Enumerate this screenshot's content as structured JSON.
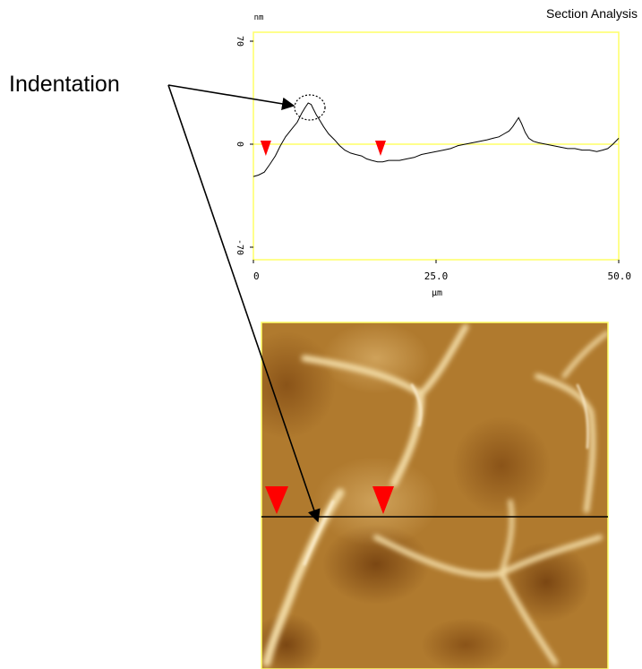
{
  "chart_data": {
    "type": "line",
    "title": "Section Analysis",
    "ylabel": "nm",
    "xlabel": "µm",
    "xlim": [
      0,
      50
    ],
    "ylim": [
      -70,
      70
    ],
    "x_ticks": [
      {
        "value": 0,
        "label": "0"
      },
      {
        "value": 25,
        "label": "25.0"
      },
      {
        "value": 50,
        "label": "50.0"
      }
    ],
    "y_ticks": [
      {
        "value": 70,
        "label": "70"
      },
      {
        "value": 0,
        "label": "0"
      },
      {
        "value": -70,
        "label": "-70"
      }
    ],
    "reference_line": {
      "y": 0,
      "color": "#ffff66"
    },
    "markers": [
      {
        "x": 1.7,
        "y": -8,
        "color": "#ff0000"
      },
      {
        "x": 17.4,
        "y": -9,
        "color": "#ff0000"
      }
    ],
    "series": [
      {
        "color": "#000000",
        "x": [
          0,
          0.7,
          1.5,
          2.2,
          3.0,
          3.7,
          4.4,
          5.2,
          6.0,
          6.6,
          7.1,
          7.5,
          7.9,
          8.2,
          8.6,
          9.0,
          9.6,
          10.3,
          11.1,
          11.8,
          12.5,
          13.3,
          14.0,
          14.8,
          15.5,
          16.2,
          17.0,
          17.7,
          18.5,
          19.2,
          20.0,
          21.0,
          22.0,
          23.0,
          24.0,
          25.0,
          26.0,
          27.0,
          28.0,
          29.0,
          30.0,
          31.0,
          32.0,
          32.8,
          33.6,
          34.3,
          35.0,
          35.5,
          35.9,
          36.3,
          36.7,
          37.2,
          37.7,
          38.3,
          39.0,
          40.0,
          41.0,
          42.0,
          43.0,
          44.0,
          45.0,
          46.0,
          47.0,
          47.8,
          48.5,
          49.2,
          50.0
        ],
        "y": [
          -22,
          -21,
          -19,
          -14,
          -8,
          -1,
          5,
          10,
          15,
          21,
          25,
          28,
          27,
          24,
          20,
          17,
          12,
          7,
          3,
          -1,
          -4,
          -6,
          -7,
          -8,
          -10,
          -11,
          -12,
          -12,
          -11,
          -11,
          -11,
          -10,
          -9,
          -7,
          -6,
          -5,
          -4,
          -3,
          -1,
          0,
          1,
          2,
          3,
          4,
          5,
          7,
          9,
          12,
          15,
          18,
          14,
          8,
          4,
          2,
          1,
          0,
          -1,
          -2,
          -3,
          -3,
          -4,
          -4,
          -5,
          -4,
          -3,
          0,
          4
        ]
      }
    ]
  },
  "annotation": {
    "label": "Indentation"
  },
  "colors": {
    "frame": "#ffff66",
    "marker": "#ff0000"
  }
}
